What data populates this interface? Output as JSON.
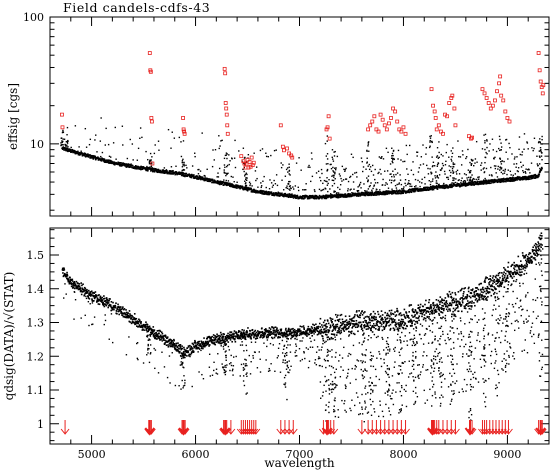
{
  "figure_title": "Field candels-cdfs-43",
  "chart_data": [
    {
      "type": "scatter",
      "panel": "top",
      "title": "",
      "xlabel": "",
      "ylabel": "effsig [cgs]",
      "xlim": [
        4600,
        9400
      ],
      "ylim": [
        2.7,
        100
      ],
      "yscale": "log",
      "xticks": [
        5000,
        6000,
        7000,
        8000,
        9000
      ],
      "yticks": [
        10,
        100
      ],
      "ytick_labels": [
        "10",
        "100"
      ],
      "show_x_tick_labels": false,
      "series": [
        {
          "color": "#000000",
          "marker": "dot",
          "baseline_x": [
            4720,
            4800,
            5000,
            5200,
            5400,
            5600,
            5800,
            6000,
            6200,
            6400,
            6600,
            6800,
            7000,
            7200,
            7400,
            7600,
            7800,
            8000,
            8200,
            8400,
            8600,
            8800,
            9000,
            9200,
            9300,
            9330
          ],
          "baseline_y": [
            9.2,
            8.8,
            7.9,
            7.1,
            6.6,
            6.2,
            5.9,
            5.5,
            5.0,
            4.6,
            4.2,
            4.0,
            3.8,
            3.8,
            3.9,
            4.0,
            4.1,
            4.2,
            4.4,
            4.6,
            4.8,
            5.0,
            5.2,
            5.4,
            5.6,
            6.5
          ],
          "band_x": [
            4720,
            4760,
            5570,
            5880,
            6290,
            6480,
            6900,
            7260,
            7330,
            7660,
            7900,
            8270,
            8330,
            8470,
            8650,
            8790,
            8940,
            9320
          ],
          "band_top_y": [
            13,
            11,
            7.5,
            8.5,
            9,
            8,
            7,
            12,
            9,
            11,
            10,
            12,
            11,
            10,
            8,
            12,
            11,
            12
          ]
        },
        {
          "color": "#e8211f",
          "marker": "open-square",
          "points": [
            [
              4715,
              17
            ],
            [
              4720,
              13.5
            ],
            [
              5560,
              52
            ],
            [
              5565,
              38
            ],
            [
              5570,
              37
            ],
            [
              5575,
              16
            ],
            [
              5580,
              15
            ],
            [
              5585,
              7
            ],
            [
              5880,
              16
            ],
            [
              5885,
              13
            ],
            [
              5890,
              12.5
            ],
            [
              5895,
              12
            ],
            [
              6280,
              39
            ],
            [
              6285,
              36
            ],
            [
              6290,
              21
            ],
            [
              6295,
              19
            ],
            [
              6300,
              17
            ],
            [
              6305,
              14
            ],
            [
              6310,
              12
            ],
            [
              6440,
              8
            ],
            [
              6460,
              7.3
            ],
            [
              6470,
              7
            ],
            [
              6480,
              6.5
            ],
            [
              6490,
              6.9
            ],
            [
              6500,
              7.5
            ],
            [
              6510,
              6.5
            ],
            [
              6520,
              7.2
            ],
            [
              6530,
              6.6
            ],
            [
              6540,
              7.8
            ],
            [
              6550,
              6.8
            ],
            [
              6560,
              7.1
            ],
            [
              6820,
              14
            ],
            [
              6840,
              9.5
            ],
            [
              6850,
              8.9
            ],
            [
              6880,
              9.2
            ],
            [
              6900,
              8.4
            ],
            [
              6920,
              8.1
            ],
            [
              6930,
              7.8
            ],
            [
              7260,
              13
            ],
            [
              7270,
              13.5
            ],
            [
              7280,
              16.5
            ],
            [
              7290,
              11
            ],
            [
              7660,
              13
            ],
            [
              7680,
              14
            ],
            [
              7700,
              15
            ],
            [
              7720,
              16.5
            ],
            [
              7740,
              13
            ],
            [
              7760,
              12.5
            ],
            [
              7780,
              17
            ],
            [
              7800,
              15.5
            ],
            [
              7820,
              14
            ],
            [
              7840,
              13
            ],
            [
              7860,
              14.5
            ],
            [
              7880,
              16
            ],
            [
              7900,
              19
            ],
            [
              7920,
              18
            ],
            [
              7940,
              15
            ],
            [
              7960,
              13
            ],
            [
              7980,
              12.5
            ],
            [
              8000,
              13.5
            ],
            [
              8020,
              12
            ],
            [
              8270,
              27
            ],
            [
              8285,
              20
            ],
            [
              8300,
              18
            ],
            [
              8310,
              16
            ],
            [
              8320,
              13
            ],
            [
              8340,
              14
            ],
            [
              8360,
              12.5
            ],
            [
              8380,
              12
            ],
            [
              8400,
              17
            ],
            [
              8420,
              16.5
            ],
            [
              8440,
              21
            ],
            [
              8460,
              23
            ],
            [
              8470,
              24
            ],
            [
              8490,
              19
            ],
            [
              8500,
              14
            ],
            [
              8630,
              11.5
            ],
            [
              8650,
              11
            ],
            [
              8660,
              11.2
            ],
            [
              8760,
              27
            ],
            [
              8780,
              25
            ],
            [
              8800,
              23
            ],
            [
              8820,
              21
            ],
            [
              8840,
              19
            ],
            [
              8860,
              20
            ],
            [
              8880,
              22
            ],
            [
              8900,
              26
            ],
            [
              8920,
              30
            ],
            [
              8930,
              34
            ],
            [
              8940,
              24
            ],
            [
              8960,
              22
            ],
            [
              8980,
              18
            ],
            [
              9000,
              16
            ],
            [
              9020,
              15
            ],
            [
              9300,
              52
            ],
            [
              9310,
              38
            ],
            [
              9320,
              31
            ],
            [
              9330,
              28
            ],
            [
              9340,
              25
            ],
            [
              9345,
              29
            ]
          ]
        }
      ]
    },
    {
      "type": "scatter",
      "panel": "bottom",
      "title": "",
      "xlabel": "wavelength",
      "ylabel": "qdsig(DATA)/√(STAT)",
      "xlim": [
        4600,
        9400
      ],
      "ylim": [
        0.94,
        1.58
      ],
      "xticks": [
        5000,
        6000,
        7000,
        8000,
        9000
      ],
      "yticks": [
        1.0,
        1.1,
        1.2,
        1.3,
        1.4,
        1.5
      ],
      "ytick_labels": [
        "1",
        "1.1",
        "1.2",
        "1.3",
        "1.4",
        "1.5"
      ],
      "series": [
        {
          "color": "#000000",
          "marker": "dot",
          "trend_x": [
            4720,
            4800,
            5000,
            5200,
            5400,
            5600,
            5800,
            5900,
            6000,
            6200,
            6400,
            6600,
            6800,
            7000,
            7200,
            7400,
            7600,
            7800,
            8000,
            8200,
            8400,
            8600,
            8800,
            9000,
            9200,
            9330
          ],
          "trend_y": [
            1.45,
            1.42,
            1.38,
            1.35,
            1.31,
            1.27,
            1.23,
            1.21,
            1.23,
            1.25,
            1.26,
            1.27,
            1.27,
            1.27,
            1.28,
            1.29,
            1.3,
            1.3,
            1.31,
            1.33,
            1.35,
            1.37,
            1.4,
            1.44,
            1.48,
            1.54
          ],
          "dip_x": [
            5550,
            5880,
            6280,
            6480,
            6870,
            7270,
            7330,
            7620,
            7700,
            7850,
            7970,
            8100,
            8290,
            8360,
            8470,
            8640,
            8780,
            8900,
            9000,
            9320
          ],
          "dip_depth": [
            0.08,
            0.12,
            0.12,
            0.18,
            0.22,
            0.28,
            0.25,
            0.3,
            0.28,
            0.26,
            0.28,
            0.25,
            0.32,
            0.3,
            0.3,
            0.38,
            0.35,
            0.36,
            0.3,
            0.4
          ]
        }
      ],
      "annotations": {
        "label": "",
        "color": "#e8211f",
        "marker": "down-arrow",
        "arrows_x": [
          4745,
          5550,
          5575,
          5870,
          5885,
          5900,
          6270,
          6290,
          6300,
          6340,
          6440,
          6460,
          6480,
          6500,
          6520,
          6540,
          6560,
          6580,
          6820,
          6860,
          6900,
          6940,
          7230,
          7260,
          7280,
          7300,
          7330,
          7600,
          7660,
          7700,
          7740,
          7780,
          7820,
          7860,
          7900,
          7940,
          7980,
          8020,
          8270,
          8290,
          8300,
          8320,
          8340,
          8380,
          8420,
          8460,
          8500,
          8640,
          8660,
          8760,
          8780,
          8800,
          8830,
          8860,
          8890,
          8920,
          8950,
          8980,
          9010,
          9300,
          9320,
          9335
        ],
        "bold_x": [
          5560,
          5885,
          6285,
          7265,
          8280,
          8640,
          9320
        ]
      }
    }
  ]
}
